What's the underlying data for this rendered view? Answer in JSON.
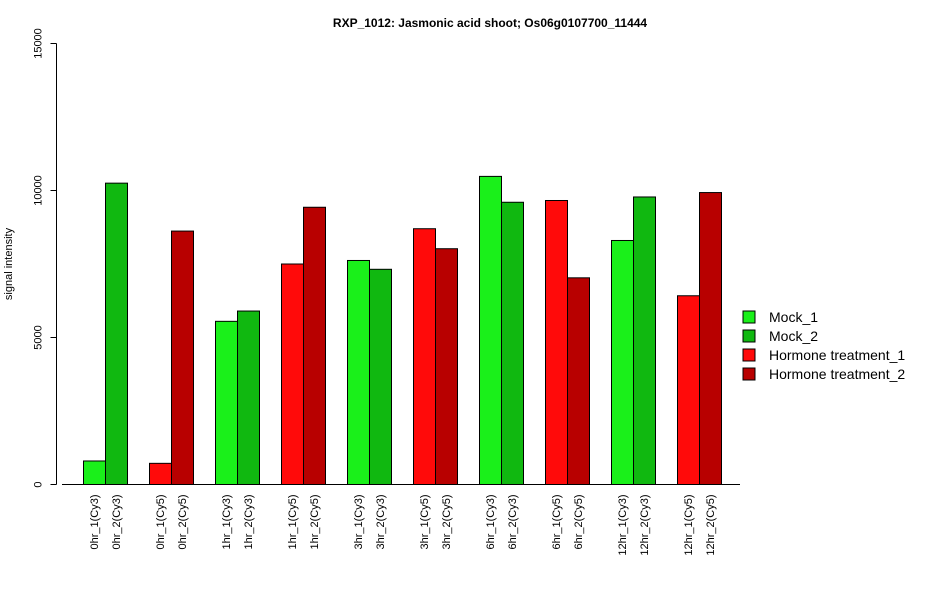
{
  "chart_data": {
    "type": "bar",
    "title": "RXP_1012: Jasmonic acid shoot; Os06g0107700_11444",
    "xlabel": "",
    "ylabel": "signal intensity",
    "ylim": [
      0,
      15000
    ],
    "yticks": [
      0,
      5000,
      10000,
      15000
    ],
    "grid": false,
    "legend_position": "right",
    "legend": [
      {
        "label": "Mock_1",
        "color": "#1AF01A"
      },
      {
        "label": "Mock_2",
        "color": "#10B810"
      },
      {
        "label": "Hormone treatment_1",
        "color": "#FF0A0A"
      },
      {
        "label": "Hormone treatment_2",
        "color": "#B80000"
      }
    ],
    "groups": [
      {
        "bars": [
          {
            "label": "0hr_1(Cy3)",
            "value": 800,
            "color": "#1AF01A"
          },
          {
            "label": "0hr_2(Cy3)",
            "value": 10250,
            "color": "#10B810"
          }
        ]
      },
      {
        "bars": [
          {
            "label": "0hr_1(Cy5)",
            "value": 720,
            "color": "#FF0A0A"
          },
          {
            "label": "0hr_2(Cy5)",
            "value": 8620,
            "color": "#B80000"
          }
        ]
      },
      {
        "bars": [
          {
            "label": "1hr_1(Cy3)",
            "value": 5550,
            "color": "#1AF01A"
          },
          {
            "label": "1hr_2(Cy3)",
            "value": 5900,
            "color": "#10B810"
          }
        ]
      },
      {
        "bars": [
          {
            "label": "1hr_1(Cy5)",
            "value": 7500,
            "color": "#FF0A0A"
          },
          {
            "label": "1hr_2(Cy5)",
            "value": 9430,
            "color": "#B80000"
          }
        ]
      },
      {
        "bars": [
          {
            "label": "3hr_1(Cy3)",
            "value": 7620,
            "color": "#1AF01A"
          },
          {
            "label": "3hr_2(Cy3)",
            "value": 7320,
            "color": "#10B810"
          }
        ]
      },
      {
        "bars": [
          {
            "label": "3hr_1(Cy5)",
            "value": 8700,
            "color": "#FF0A0A"
          },
          {
            "label": "3hr_2(Cy5)",
            "value": 8020,
            "color": "#B80000"
          }
        ]
      },
      {
        "bars": [
          {
            "label": "6hr_1(Cy3)",
            "value": 10480,
            "color": "#1AF01A"
          },
          {
            "label": "6hr_2(Cy3)",
            "value": 9600,
            "color": "#10B810"
          }
        ]
      },
      {
        "bars": [
          {
            "label": "6hr_1(Cy5)",
            "value": 9660,
            "color": "#FF0A0A"
          },
          {
            "label": "6hr_2(Cy5)",
            "value": 7030,
            "color": "#B80000"
          }
        ]
      },
      {
        "bars": [
          {
            "label": "12hr_1(Cy3)",
            "value": 8300,
            "color": "#1AF01A"
          },
          {
            "label": "12hr_2(Cy3)",
            "value": 9780,
            "color": "#10B810"
          }
        ]
      },
      {
        "bars": [
          {
            "label": "12hr_1(Cy5)",
            "value": 6420,
            "color": "#FF0A0A"
          },
          {
            "label": "12hr_2(Cy5)",
            "value": 9930,
            "color": "#B80000"
          }
        ]
      }
    ]
  }
}
